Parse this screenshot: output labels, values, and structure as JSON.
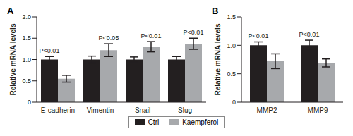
{
  "chart_data": [
    {
      "type": "bar",
      "title": "A",
      "y_label": "Relative mRNA levels",
      "categories": [
        "E-cadherin",
        "Vimentin",
        "Snail",
        "Slug"
      ],
      "series": [
        {
          "name": "Ctrl",
          "color": "#231f20",
          "values": [
            1.0,
            1.0,
            1.0,
            1.0
          ],
          "errors": [
            0.07,
            0.08,
            0.06,
            0.07
          ]
        },
        {
          "name": "Kaempferol",
          "color": "#a7a9ac",
          "values": [
            0.55,
            1.22,
            1.3,
            1.37
          ],
          "errors": [
            0.08,
            0.15,
            0.12,
            0.13
          ]
        }
      ],
      "annotations": [
        "P<0.01",
        "P<0.05",
        "P<0.01",
        "P<0.01"
      ],
      "ylim": [
        0,
        2
      ],
      "yticks": [
        0,
        0.5,
        {
          "value": 1,
          "label": "1.0"
        },
        1.5,
        {
          "value": 2,
          "label": "2.0"
        }
      ],
      "grid": false
    },
    {
      "type": "bar",
      "title": "B",
      "y_label": "Relative mRNA levels",
      "categories": [
        "MMP2",
        "MMP9"
      ],
      "series": [
        {
          "name": "Ctrl",
          "color": "#231f20",
          "values": [
            1.0,
            1.0
          ],
          "errors": [
            0.06,
            0.09
          ]
        },
        {
          "name": "Kaempferol",
          "color": "#a7a9ac",
          "values": [
            0.72,
            0.69
          ],
          "errors": [
            0.13,
            0.07
          ]
        }
      ],
      "annotations": [
        "P<0.01",
        "P<0.01"
      ],
      "ylim": [
        0,
        1.5
      ],
      "yticks": [
        0,
        0.5,
        {
          "value": 1,
          "label": "1.0"
        },
        1.5
      ],
      "grid": false
    }
  ]
}
